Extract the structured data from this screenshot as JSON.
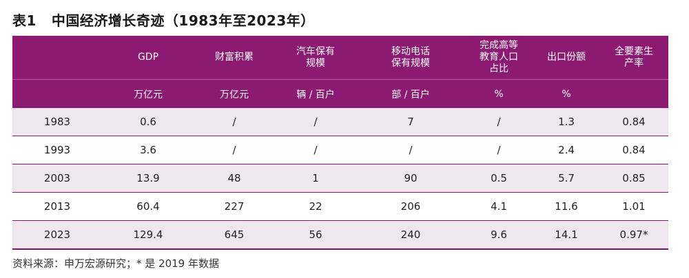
{
  "title": {
    "label": "表1",
    "text": "中国经济增长奇迹（1983年至2023年）"
  },
  "table": {
    "headers": [
      {
        "lines": [
          ""
        ]
      },
      {
        "lines": [
          "GDP"
        ]
      },
      {
        "lines": [
          "财富积累"
        ]
      },
      {
        "lines": [
          "汽车保有",
          "规模"
        ]
      },
      {
        "lines": [
          "移动电话",
          "保有规模"
        ]
      },
      {
        "lines": [
          "完成高等",
          "教育人口",
          "占比"
        ]
      },
      {
        "lines": [
          "出口份额"
        ]
      },
      {
        "lines": [
          "全要素生",
          "产率"
        ]
      }
    ],
    "units": [
      "",
      "万亿元",
      "万亿元",
      "辆 / 百户",
      "部 / 百户",
      "%",
      "%",
      ""
    ],
    "rows": [
      [
        "1983",
        "0.6",
        "/",
        "/",
        "7",
        "/",
        "1.3",
        "0.84"
      ],
      [
        "1993",
        "3.6",
        "/",
        "/",
        "/",
        "/",
        "2.4",
        "0.84"
      ],
      [
        "2003",
        "13.9",
        "48",
        "1",
        "90",
        "0.5",
        "5.7",
        "0.85"
      ],
      [
        "2013",
        "60.4",
        "227",
        "22",
        "206",
        "4.1",
        "11.6",
        "1.01"
      ],
      [
        "2023",
        "129.4",
        "645",
        "56",
        "240",
        "9.6",
        "14.1",
        "0.97*"
      ]
    ]
  },
  "colors": {
    "header_bg": "#8c1a72",
    "shaded_row_bg": "#efe6ee",
    "rule": "#7a1766"
  },
  "source": "资料来源：申万宏源研究；* 是 2019 年数据"
}
